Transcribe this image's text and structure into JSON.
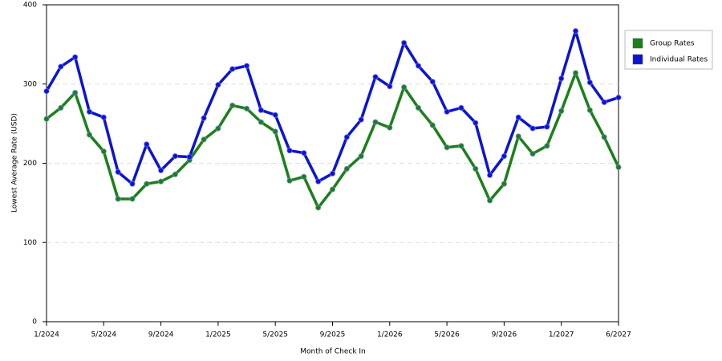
{
  "chart_data": {
    "type": "line",
    "x_label": "Month of Check In",
    "y_label": "Lowest Average Rate (USD)",
    "categories": [
      "1/2024",
      null,
      null,
      null,
      "5/2024",
      null,
      null,
      null,
      "9/2024",
      null,
      null,
      null,
      "1/2025",
      null,
      null,
      null,
      "5/2025",
      null,
      null,
      null,
      "9/2025",
      null,
      null,
      null,
      "1/2026",
      null,
      null,
      null,
      "5/2026",
      null,
      null,
      null,
      "9/2026",
      null,
      null,
      null,
      "1/2027",
      null,
      null,
      null,
      "6/2027"
    ],
    "series": [
      {
        "name": "Group Rates",
        "color": "#1a801a",
        "values": [
          256,
          270,
          289,
          236,
          215,
          155,
          155,
          174,
          177,
          186,
          204,
          230,
          244,
          273,
          269,
          252,
          240,
          178,
          183,
          144,
          167,
          193,
          209,
          252,
          245,
          296,
          270,
          248,
          220,
          222,
          193,
          153,
          174,
          234,
          212,
          222,
          266,
          314,
          267,
          233,
          195
        ]
      },
      {
        "name": "Individual Rates",
        "color": "#0a14d2",
        "values": [
          291,
          322,
          334,
          265,
          258,
          189,
          174,
          224,
          191,
          209,
          208,
          257,
          299,
          319,
          323,
          267,
          261,
          216,
          213,
          177,
          187,
          233,
          255,
          309,
          297,
          352,
          323,
          303,
          265,
          270,
          251,
          185,
          209,
          258,
          244,
          246,
          307,
          367,
          302,
          277,
          283
        ]
      }
    ],
    "ylim": [
      0,
      400
    ],
    "yticks": [
      0,
      100,
      200,
      300,
      400
    ],
    "grid": true,
    "legend": "right"
  }
}
